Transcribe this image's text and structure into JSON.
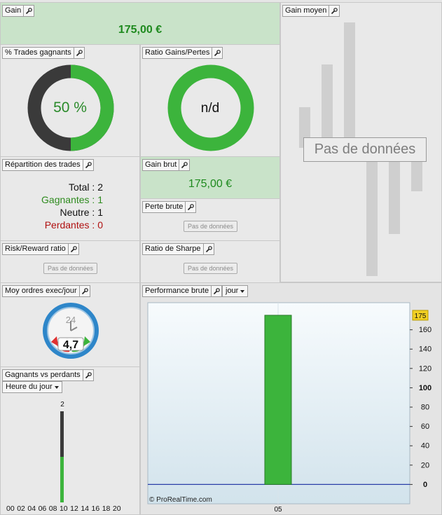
{
  "gain": {
    "title": "Gain",
    "value": "175,00 €"
  },
  "trades_gagnants": {
    "title": "% Trades gagnants",
    "value": "50 %",
    "fraction": 0.5
  },
  "ratio": {
    "title": "Ratio Gains/Pertes",
    "value": "n/d"
  },
  "gain_moyen": {
    "title": "Gain moyen",
    "nodata": "Pas de données"
  },
  "repartition": {
    "title": "Répartition des trades",
    "lines": [
      {
        "label": "Total",
        "value": "2",
        "color": "#111111"
      },
      {
        "label": "Gagnantes",
        "value": "1",
        "color": "#2e8b1e"
      },
      {
        "label": "Neutre",
        "value": "1",
        "color": "#111111"
      },
      {
        "label": "Perdantes",
        "value": "0",
        "color": "#b01010"
      }
    ]
  },
  "gain_brut": {
    "title": "Gain brut",
    "value": "175,00 €"
  },
  "perte_brute": {
    "title": "Perte brute",
    "nodata": "Pas de données"
  },
  "risk_reward": {
    "title": "Risk/Reward ratio",
    "nodata": "Pas de données"
  },
  "sharpe": {
    "title": "Ratio de Sharpe",
    "nodata": "Pas de données"
  },
  "moy_ordres": {
    "title": "Moy ordres exec/jour",
    "value": "4,7",
    "clock_label": "24"
  },
  "gagnants_vs": {
    "title": "Gagnants vs perdants",
    "dropdown": "Heure du jour",
    "bar_label": "2",
    "x_labels": [
      "00",
      "02",
      "04",
      "06",
      "08",
      "10",
      "12",
      "14",
      "16",
      "18",
      "20"
    ]
  },
  "perf": {
    "title": "Performance brute",
    "dropdown": "jour",
    "copyright": "© ProRealTime.com"
  },
  "colors": {
    "green": "#3cb43c",
    "dark": "#3a3a3a",
    "panel_green": "#c9e3c9"
  },
  "chart_data": {
    "type": "bar",
    "categories": [
      "05"
    ],
    "values": [
      175
    ],
    "title": "Performance brute",
    "xlabel": "",
    "ylabel": "",
    "ylim": [
      -20,
      188
    ],
    "y_ticks": [
      0,
      20,
      40,
      60,
      80,
      100,
      120,
      140,
      160
    ],
    "last_value": "175"
  }
}
